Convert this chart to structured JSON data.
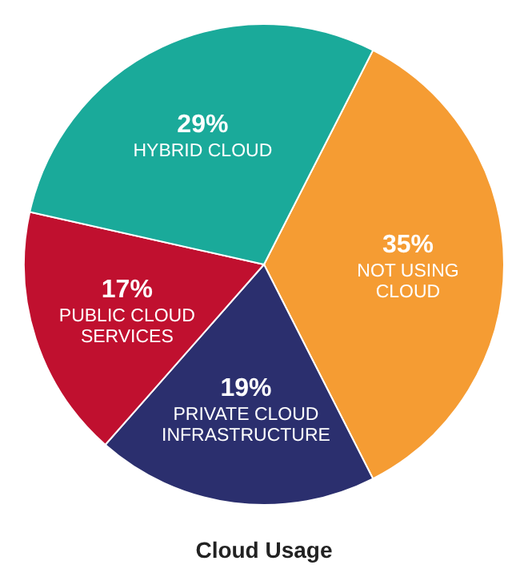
{
  "chart_data": {
    "type": "pie",
    "title": "Cloud Usage",
    "categories": [
      "NOT USING CLOUD",
      "PRIVATE CLOUD INFRASTRUCTURE",
      "PUBLIC CLOUD SERVICES",
      "HYBRID CLOUD"
    ],
    "values": [
      35,
      19,
      17,
      29
    ],
    "value_labels": [
      "35%",
      "19%",
      "17%",
      "29%"
    ],
    "colors": [
      "#f59c33",
      "#2b2f6e",
      "#c0102f",
      "#1aaa9a"
    ]
  }
}
